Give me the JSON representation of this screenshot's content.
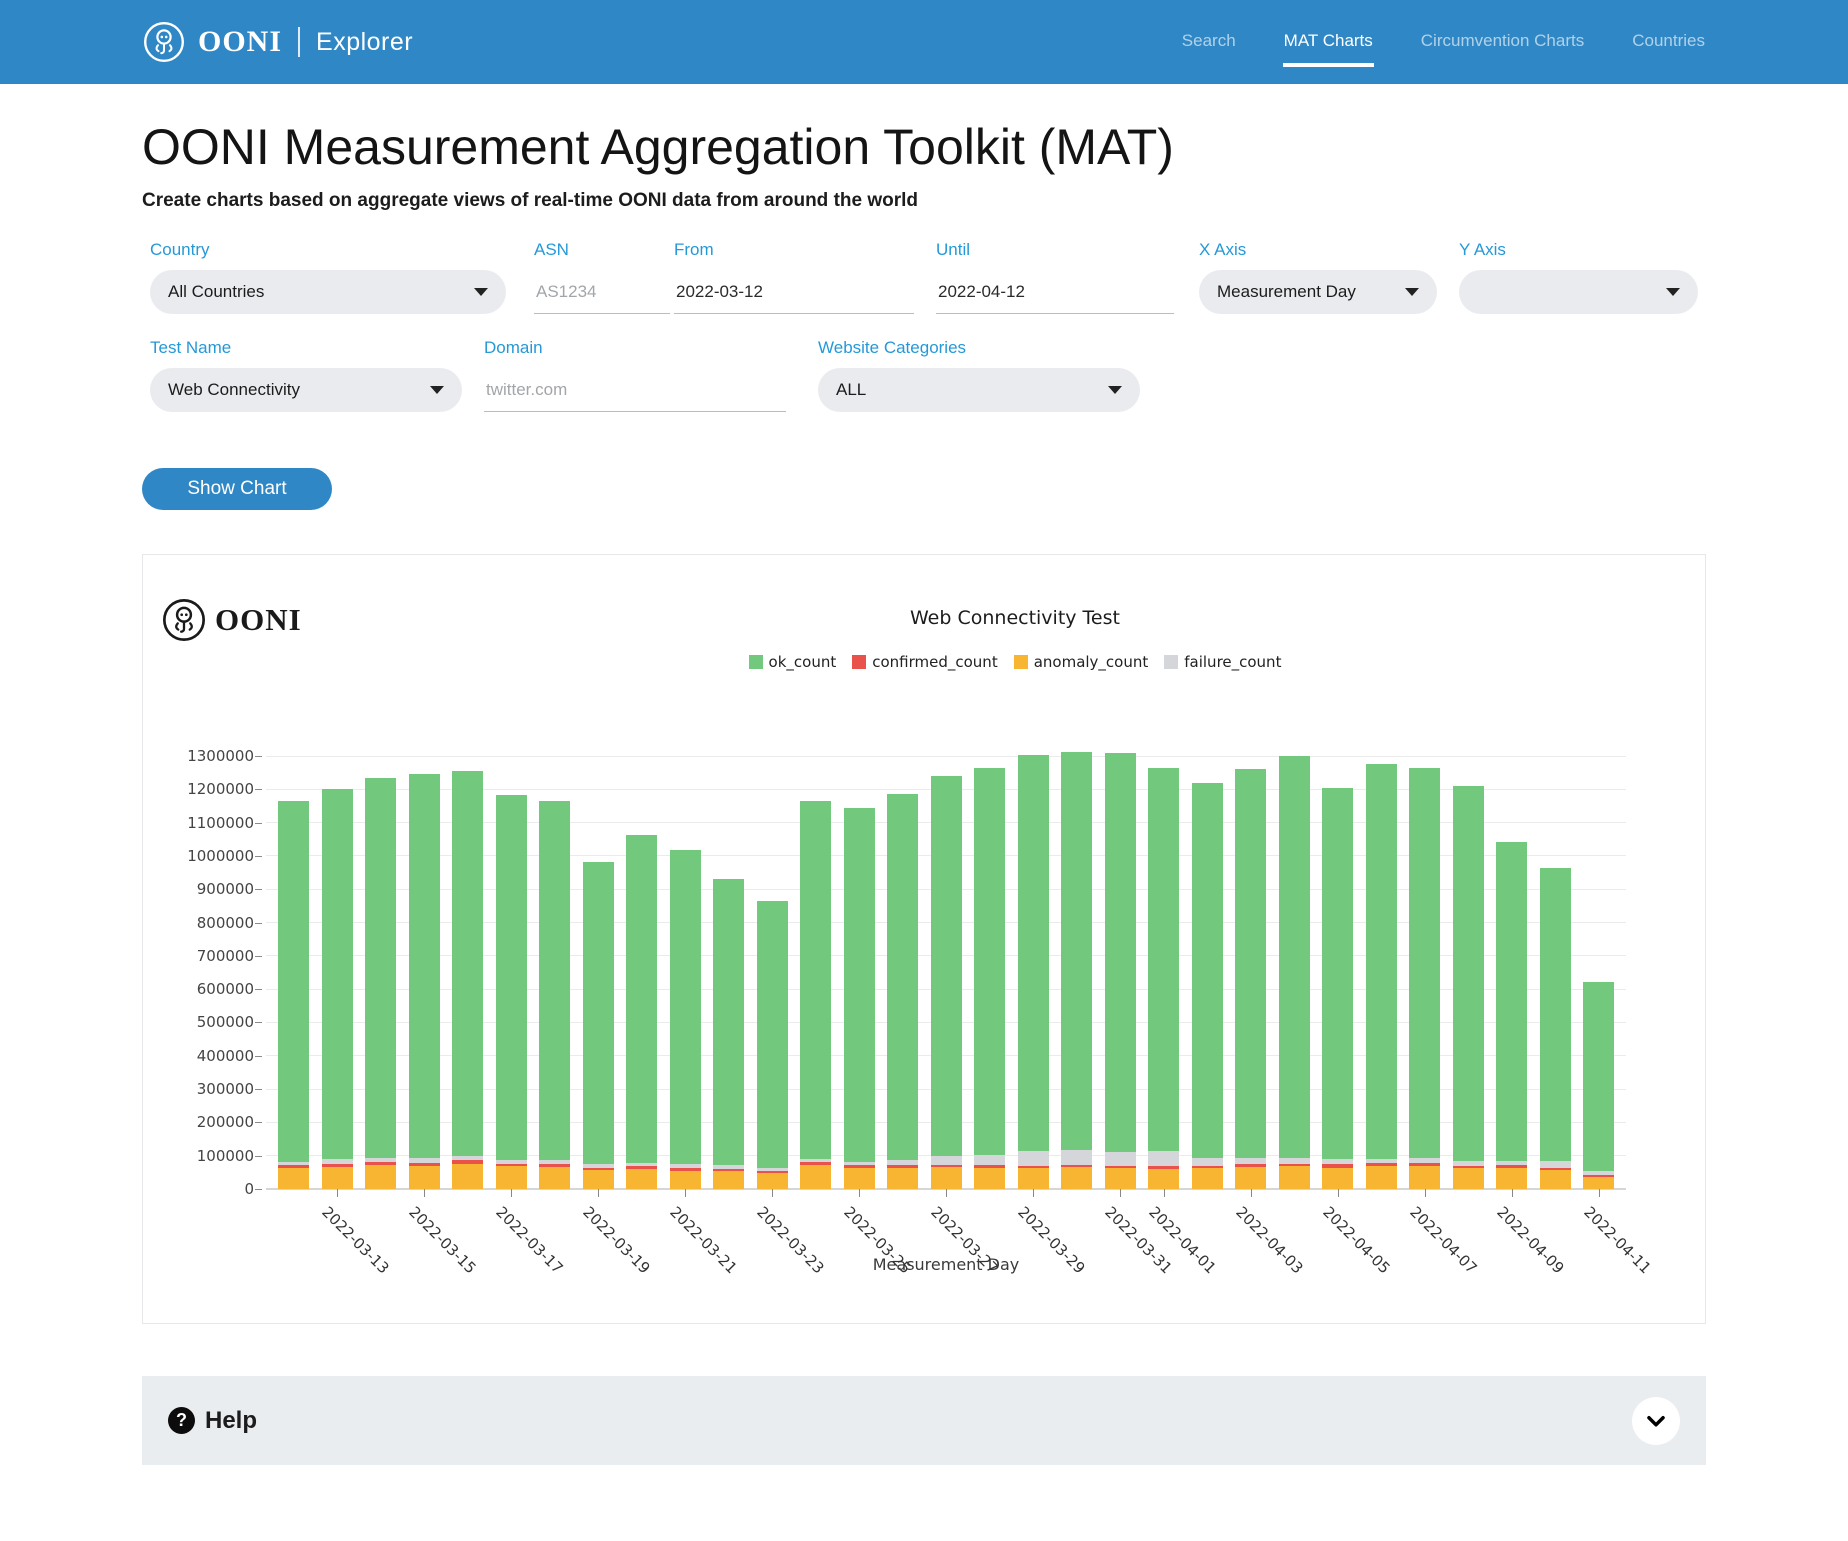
{
  "header": {
    "brand": "OONI",
    "brand_sub": "Explorer",
    "nav": [
      {
        "label": "Search",
        "active": false
      },
      {
        "label": "MAT Charts",
        "active": true
      },
      {
        "label": "Circumvention Charts",
        "active": false
      },
      {
        "label": "Countries",
        "active": false
      }
    ]
  },
  "page": {
    "title": "OONI Measurement Aggregation Toolkit (MAT)",
    "subtitle": "Create charts based on aggregate views of real-time OONI data from around the world"
  },
  "form": {
    "country": {
      "label": "Country",
      "value": "All Countries"
    },
    "asn": {
      "label": "ASN",
      "placeholder": "AS1234"
    },
    "from": {
      "label": "From",
      "value": "2022-03-12"
    },
    "until": {
      "label": "Until",
      "value": "2022-04-12"
    },
    "x_axis": {
      "label": "X Axis",
      "value": "Measurement Day"
    },
    "y_axis": {
      "label": "Y Axis",
      "value": ""
    },
    "test_name": {
      "label": "Test Name",
      "value": "Web Connectivity"
    },
    "domain": {
      "label": "Domain",
      "placeholder": "twitter.com"
    },
    "website_categories": {
      "label": "Website Categories",
      "value": "ALL"
    },
    "submit_label": "Show Chart"
  },
  "chart_card": {
    "brand": "OONI"
  },
  "chart_data": {
    "type": "bar",
    "stacked": true,
    "title": "Web Connectivity Test",
    "xlabel": "Measurement Day",
    "ylim": [
      0,
      1365000
    ],
    "y_ticks": [
      0,
      100000,
      200000,
      300000,
      400000,
      500000,
      600000,
      700000,
      800000,
      900000,
      1000000,
      1100000,
      1200000,
      1300000
    ],
    "legend": [
      "ok_count",
      "confirmed_count",
      "anomaly_count",
      "failure_count"
    ],
    "colors": {
      "ok_count": "#72c97e",
      "confirmed_count": "#e8524a",
      "anomaly_count": "#f8b532",
      "failure_count": "#d4d6da"
    },
    "stack_order": [
      "anomaly_count",
      "confirmed_count",
      "failure_count",
      "ok_count"
    ],
    "categories": [
      "2022-03-12",
      "2022-03-13",
      "2022-03-14",
      "2022-03-15",
      "2022-03-16",
      "2022-03-17",
      "2022-03-18",
      "2022-03-19",
      "2022-03-20",
      "2022-03-21",
      "2022-03-22",
      "2022-03-23",
      "2022-03-24",
      "2022-03-25",
      "2022-03-26",
      "2022-03-27",
      "2022-03-28",
      "2022-03-29",
      "2022-03-30",
      "2022-03-31",
      "2022-04-01",
      "2022-04-02",
      "2022-04-03",
      "2022-04-04",
      "2022-04-05",
      "2022-04-06",
      "2022-04-07",
      "2022-04-08",
      "2022-04-09",
      "2022-04-10",
      "2022-04-11"
    ],
    "x_tick_labels": [
      "2022-03-13",
      "2022-03-15",
      "2022-03-17",
      "2022-03-19",
      "2022-03-21",
      "2022-03-23",
      "2022-03-25",
      "2022-03-27",
      "2022-03-29",
      "2022-03-31",
      "2022-04-01",
      "2022-04-03",
      "2022-04-05",
      "2022-04-07",
      "2022-04-09",
      "2022-04-11"
    ],
    "series": [
      {
        "name": "anomaly_count",
        "values": [
          62000,
          66000,
          72000,
          70000,
          76000,
          68000,
          67000,
          57000,
          61000,
          54000,
          53000,
          48000,
          72000,
          62000,
          64000,
          65000,
          64000,
          62000,
          66000,
          62000,
          60000,
          62000,
          66000,
          68000,
          64000,
          69000,
          70000,
          62000,
          64000,
          56000,
          36000
        ]
      },
      {
        "name": "confirmed_count",
        "values": [
          9000,
          9000,
          10000,
          9000,
          12000,
          8000,
          8000,
          7000,
          7000,
          8000,
          7000,
          6000,
          8000,
          9000,
          8000,
          8000,
          9000,
          8000,
          7000,
          8000,
          9000,
          8000,
          9000,
          8000,
          10000,
          8000,
          9000,
          7000,
          9000,
          8000,
          7000
        ]
      },
      {
        "name": "failure_count",
        "values": [
          10000,
          14000,
          12000,
          13000,
          10000,
          12000,
          12000,
          12000,
          11000,
          14000,
          13000,
          10000,
          10000,
          11000,
          14000,
          25000,
          28000,
          45000,
          45000,
          42000,
          45000,
          22000,
          18000,
          16000,
          16000,
          14000,
          14000,
          16000,
          10000,
          20000,
          12000
        ]
      },
      {
        "name": "ok_count",
        "values": [
          1084000,
          1113000,
          1141000,
          1155000,
          1158000,
          1095000,
          1077000,
          906000,
          984000,
          943000,
          857000,
          800000,
          1074000,
          1063000,
          1101000,
          1141000,
          1162000,
          1187000,
          1195000,
          1198000,
          1150000,
          1128000,
          1168000,
          1209000,
          1114000,
          1186000,
          1170000,
          1124000,
          958000,
          880000,
          566000
        ]
      }
    ]
  },
  "help": {
    "label": "Help"
  }
}
